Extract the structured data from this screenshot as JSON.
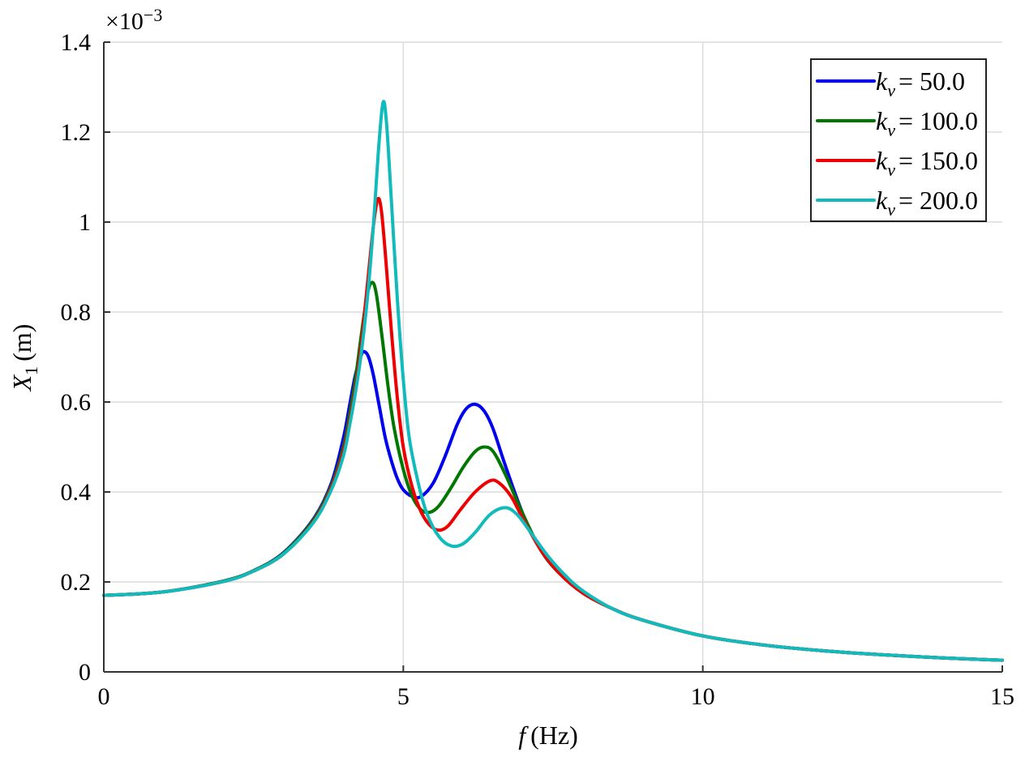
{
  "chart_data": {
    "type": "line",
    "xlabel_var": "f",
    "xlabel_unit": "(Hz)",
    "ylabel_var": "X",
    "ylabel_sub": "1",
    "ylabel_unit": "(m)",
    "exponent_label": "×10",
    "exponent_power": "−3",
    "xlim": [
      0,
      15
    ],
    "ylim": [
      0,
      1.4
    ],
    "x_ticks": [
      0,
      5,
      10,
      15
    ],
    "x_tick_labels": [
      "0",
      "5",
      "10",
      "15"
    ],
    "y_ticks": [
      0,
      0.2,
      0.4,
      0.6,
      0.8,
      1.0,
      1.2,
      1.4
    ],
    "y_tick_labels": [
      "0",
      "0.2",
      "0.4",
      "0.6",
      "0.8",
      "1",
      "1.2",
      "1.4"
    ],
    "grid": true,
    "legend_position": "top-right",
    "series": [
      {
        "name": "k_v = 50.0",
        "legend_var": "k",
        "legend_sub": "v",
        "legend_value": "= 50.0",
        "color": "#0000ee",
        "points": [
          [
            0,
            0.17
          ],
          [
            1,
            0.178
          ],
          [
            2,
            0.202
          ],
          [
            2.5,
            0.225
          ],
          [
            3,
            0.265
          ],
          [
            3.5,
            0.34
          ],
          [
            3.8,
            0.42
          ],
          [
            4.0,
            0.52
          ],
          [
            4.1,
            0.59
          ],
          [
            4.2,
            0.66
          ],
          [
            4.3,
            0.705
          ],
          [
            4.35,
            0.712
          ],
          [
            4.42,
            0.7
          ],
          [
            4.5,
            0.66
          ],
          [
            4.6,
            0.59
          ],
          [
            4.7,
            0.52
          ],
          [
            4.8,
            0.47
          ],
          [
            4.9,
            0.43
          ],
          [
            5.0,
            0.405
          ],
          [
            5.15,
            0.39
          ],
          [
            5.3,
            0.39
          ],
          [
            5.5,
            0.42
          ],
          [
            5.7,
            0.48
          ],
          [
            5.9,
            0.55
          ],
          [
            6.05,
            0.585
          ],
          [
            6.2,
            0.595
          ],
          [
            6.35,
            0.58
          ],
          [
            6.5,
            0.54
          ],
          [
            6.7,
            0.46
          ],
          [
            7.0,
            0.35
          ],
          [
            7.3,
            0.27
          ],
          [
            7.6,
            0.22
          ],
          [
            8.0,
            0.175
          ],
          [
            8.5,
            0.14
          ],
          [
            9.0,
            0.115
          ],
          [
            10.0,
            0.08
          ],
          [
            11.0,
            0.06
          ],
          [
            12.0,
            0.047
          ],
          [
            13.0,
            0.038
          ],
          [
            14.0,
            0.031
          ],
          [
            15.0,
            0.026
          ]
        ]
      },
      {
        "name": "k_v = 100.0",
        "legend_var": "k",
        "legend_sub": "v",
        "legend_value": "= 100.0",
        "color": "#007700",
        "points": [
          [
            0,
            0.17
          ],
          [
            1,
            0.178
          ],
          [
            2,
            0.202
          ],
          [
            2.5,
            0.225
          ],
          [
            3,
            0.264
          ],
          [
            3.5,
            0.338
          ],
          [
            3.8,
            0.415
          ],
          [
            4.0,
            0.5
          ],
          [
            4.1,
            0.57
          ],
          [
            4.2,
            0.65
          ],
          [
            4.3,
            0.75
          ],
          [
            4.4,
            0.84
          ],
          [
            4.48,
            0.866
          ],
          [
            4.55,
            0.84
          ],
          [
            4.65,
            0.74
          ],
          [
            4.75,
            0.63
          ],
          [
            4.85,
            0.54
          ],
          [
            5.0,
            0.45
          ],
          [
            5.15,
            0.39
          ],
          [
            5.3,
            0.36
          ],
          [
            5.45,
            0.355
          ],
          [
            5.6,
            0.37
          ],
          [
            5.8,
            0.41
          ],
          [
            6.0,
            0.455
          ],
          [
            6.2,
            0.49
          ],
          [
            6.35,
            0.5
          ],
          [
            6.5,
            0.49
          ],
          [
            6.7,
            0.44
          ],
          [
            7.0,
            0.35
          ],
          [
            7.3,
            0.27
          ],
          [
            7.6,
            0.22
          ],
          [
            8.0,
            0.175
          ],
          [
            8.5,
            0.14
          ],
          [
            9.0,
            0.115
          ],
          [
            10.0,
            0.08
          ],
          [
            11.0,
            0.06
          ],
          [
            12.0,
            0.047
          ],
          [
            13.0,
            0.038
          ],
          [
            14.0,
            0.031
          ],
          [
            15.0,
            0.026
          ]
        ]
      },
      {
        "name": "k_v = 150.0",
        "legend_var": "k",
        "legend_sub": "v",
        "legend_value": "= 150.0",
        "color": "#ee0000",
        "points": [
          [
            0,
            0.17
          ],
          [
            1,
            0.178
          ],
          [
            2,
            0.201
          ],
          [
            2.5,
            0.224
          ],
          [
            3,
            0.262
          ],
          [
            3.5,
            0.334
          ],
          [
            3.8,
            0.41
          ],
          [
            4.0,
            0.49
          ],
          [
            4.1,
            0.555
          ],
          [
            4.2,
            0.63
          ],
          [
            4.3,
            0.73
          ],
          [
            4.4,
            0.86
          ],
          [
            4.5,
            0.99
          ],
          [
            4.57,
            1.05
          ],
          [
            4.63,
            1.03
          ],
          [
            4.7,
            0.93
          ],
          [
            4.8,
            0.76
          ],
          [
            4.9,
            0.61
          ],
          [
            5.0,
            0.5
          ],
          [
            5.15,
            0.41
          ],
          [
            5.3,
            0.355
          ],
          [
            5.45,
            0.325
          ],
          [
            5.6,
            0.315
          ],
          [
            5.75,
            0.325
          ],
          [
            5.95,
            0.36
          ],
          [
            6.2,
            0.4
          ],
          [
            6.45,
            0.425
          ],
          [
            6.6,
            0.42
          ],
          [
            6.8,
            0.39
          ],
          [
            7.0,
            0.34
          ],
          [
            7.3,
            0.27
          ],
          [
            7.6,
            0.22
          ],
          [
            8.0,
            0.175
          ],
          [
            8.5,
            0.14
          ],
          [
            9.0,
            0.115
          ],
          [
            10.0,
            0.08
          ],
          [
            11.0,
            0.06
          ],
          [
            12.0,
            0.047
          ],
          [
            13.0,
            0.038
          ],
          [
            14.0,
            0.031
          ],
          [
            15.0,
            0.026
          ]
        ]
      },
      {
        "name": "k_v = 200.0",
        "legend_var": "k",
        "legend_sub": "v",
        "legend_value": "= 200.0",
        "color": "#11bbbb",
        "points": [
          [
            0,
            0.17
          ],
          [
            1,
            0.178
          ],
          [
            2,
            0.201
          ],
          [
            2.5,
            0.224
          ],
          [
            3,
            0.262
          ],
          [
            3.5,
            0.332
          ],
          [
            3.8,
            0.405
          ],
          [
            4.0,
            0.48
          ],
          [
            4.1,
            0.545
          ],
          [
            4.2,
            0.62
          ],
          [
            4.3,
            0.71
          ],
          [
            4.4,
            0.83
          ],
          [
            4.5,
            0.99
          ],
          [
            4.58,
            1.15
          ],
          [
            4.66,
            1.265
          ],
          [
            4.72,
            1.22
          ],
          [
            4.8,
            1.05
          ],
          [
            4.9,
            0.83
          ],
          [
            5.0,
            0.65
          ],
          [
            5.1,
            0.52
          ],
          [
            5.25,
            0.42
          ],
          [
            5.4,
            0.35
          ],
          [
            5.6,
            0.3
          ],
          [
            5.8,
            0.28
          ],
          [
            6.0,
            0.285
          ],
          [
            6.2,
            0.31
          ],
          [
            6.45,
            0.35
          ],
          [
            6.7,
            0.365
          ],
          [
            6.9,
            0.35
          ],
          [
            7.1,
            0.315
          ],
          [
            7.4,
            0.26
          ],
          [
            7.7,
            0.215
          ],
          [
            8.0,
            0.18
          ],
          [
            8.5,
            0.14
          ],
          [
            9.0,
            0.115
          ],
          [
            10.0,
            0.08
          ],
          [
            11.0,
            0.06
          ],
          [
            12.0,
            0.047
          ],
          [
            13.0,
            0.038
          ],
          [
            14.0,
            0.031
          ],
          [
            15.0,
            0.026
          ]
        ]
      }
    ]
  }
}
